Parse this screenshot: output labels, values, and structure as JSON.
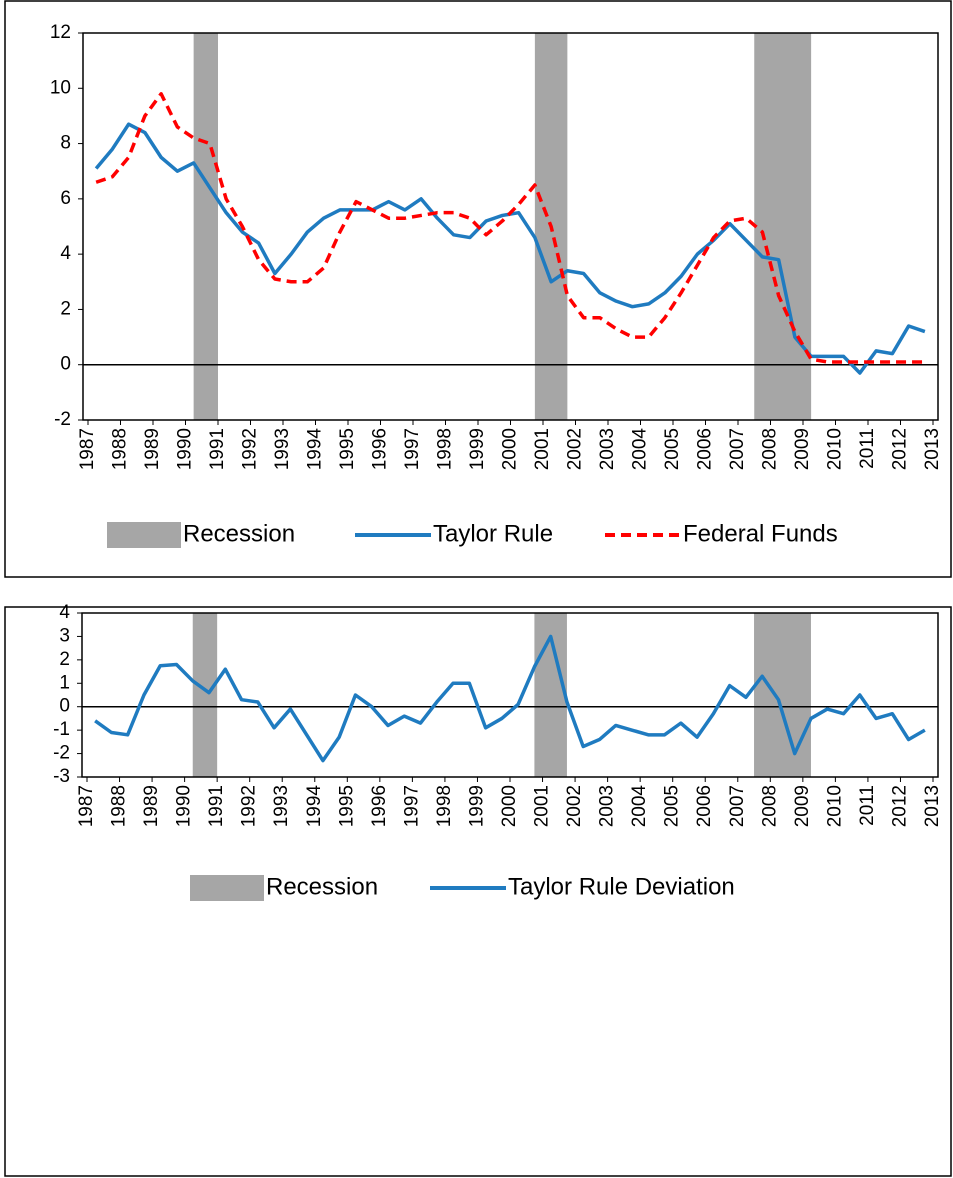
{
  "chart_data": [
    {
      "type": "line",
      "xlim": [
        1987,
        2013
      ],
      "xticks": [
        1987,
        1988,
        1989,
        1990,
        1991,
        1992,
        1993,
        1994,
        1995,
        1996,
        1997,
        1998,
        1999,
        2000,
        2001,
        2002,
        2003,
        2004,
        2005,
        2006,
        2007,
        2008,
        2009,
        2010,
        2011,
        2012,
        2013
      ],
      "ylim": [
        -2,
        12
      ],
      "yticks": [
        -2,
        0,
        2,
        4,
        6,
        8,
        10,
        12
      ],
      "recessions": {
        "name": "Recession",
        "color": "#a6a6a6",
        "periods": [
          [
            1990.25,
            1991
          ],
          [
            2000.75,
            2001.75
          ],
          [
            2007.5,
            2009.25
          ]
        ]
      },
      "x": [
        1987.25,
        1987.75,
        1988.25,
        1988.75,
        1989.25,
        1989.75,
        1990.25,
        1990.75,
        1991.25,
        1991.75,
        1992.25,
        1992.75,
        1993.25,
        1993.75,
        1994.25,
        1994.75,
        1995.25,
        1995.75,
        1996.25,
        1996.75,
        1997.25,
        1997.75,
        1998.25,
        1998.75,
        1999.25,
        1999.75,
        2000.25,
        2000.75,
        2001.25,
        2001.75,
        2002.25,
        2002.75,
        2003.25,
        2003.75,
        2004.25,
        2004.75,
        2005.25,
        2005.75,
        2006.25,
        2006.75,
        2007.25,
        2007.75,
        2008.25,
        2008.75,
        2009.25,
        2009.75,
        2010.25,
        2010.75,
        2011.25,
        2011.75,
        2012.25,
        2012.75
      ],
      "series": [
        {
          "name": "Taylor Rule",
          "color": "#1f7bc0",
          "dashed": false,
          "values": [
            7.1,
            7.8,
            8.7,
            8.4,
            7.5,
            7.0,
            7.3,
            6.4,
            5.5,
            4.8,
            4.4,
            3.3,
            4.0,
            4.8,
            5.3,
            5.6,
            5.6,
            5.6,
            5.9,
            5.6,
            6.0,
            5.3,
            4.7,
            4.6,
            5.2,
            5.4,
            5.5,
            4.6,
            3.0,
            3.4,
            3.3,
            2.6,
            2.3,
            2.1,
            2.2,
            2.6,
            3.2,
            4.0,
            4.5,
            5.1,
            4.5,
            3.9,
            3.8,
            1.0,
            0.3,
            0.3,
            0.3,
            -0.3,
            0.5,
            0.4,
            1.4,
            1.2
          ]
        },
        {
          "name": "Federal Funds",
          "color": "#ff0000",
          "dashed": true,
          "values": [
            6.6,
            6.8,
            7.5,
            9.0,
            9.8,
            8.6,
            8.2,
            8.0,
            6.0,
            5.0,
            3.8,
            3.1,
            3.0,
            3.0,
            3.5,
            4.8,
            5.9,
            5.6,
            5.3,
            5.3,
            5.4,
            5.5,
            5.5,
            5.3,
            4.7,
            5.2,
            5.8,
            6.5,
            5.0,
            2.5,
            1.7,
            1.7,
            1.3,
            1.0,
            1.0,
            1.7,
            2.6,
            3.6,
            4.6,
            5.2,
            5.3,
            4.8,
            2.5,
            1.2,
            0.2,
            0.1,
            0.1,
            0.1,
            0.1,
            0.1,
            0.1,
            0.1
          ]
        }
      ]
    },
    {
      "type": "line",
      "xlim": [
        1987,
        2013
      ],
      "xticks": [
        1987,
        1988,
        1989,
        1990,
        1991,
        1992,
        1993,
        1994,
        1995,
        1996,
        1997,
        1998,
        1999,
        2000,
        2001,
        2002,
        2003,
        2004,
        2005,
        2006,
        2007,
        2008,
        2009,
        2010,
        2011,
        2012,
        2013
      ],
      "ylim": [
        -3,
        4
      ],
      "yticks": [
        -3,
        -2,
        -1,
        0,
        1,
        2,
        3,
        4
      ],
      "recessions": {
        "name": "Recession",
        "color": "#a6a6a6",
        "periods": [
          [
            1990.25,
            1991
          ],
          [
            2000.75,
            2001.75
          ],
          [
            2007.5,
            2009.25
          ]
        ]
      },
      "x": [
        1987.25,
        1987.75,
        1988.25,
        1988.75,
        1989.25,
        1989.75,
        1990.25,
        1990.75,
        1991.25,
        1991.75,
        1992.25,
        1992.75,
        1993.25,
        1993.75,
        1994.25,
        1994.75,
        1995.25,
        1995.75,
        1996.25,
        1996.75,
        1997.25,
        1997.75,
        1998.25,
        1998.75,
        1999.25,
        1999.75,
        2000.25,
        2000.75,
        2001.25,
        2001.75,
        2002.25,
        2002.75,
        2003.25,
        2003.75,
        2004.25,
        2004.75,
        2005.25,
        2005.75,
        2006.25,
        2006.75,
        2007.25,
        2007.75,
        2008.25,
        2008.75,
        2009.25,
        2009.75,
        2010.25,
        2010.75,
        2011.25,
        2011.75,
        2012.25,
        2012.75
      ],
      "series": [
        {
          "name": "Taylor Rule Deviation",
          "color": "#1f7bc0",
          "dashed": false,
          "values": [
            -0.6,
            -1.1,
            -1.2,
            0.5,
            1.75,
            1.8,
            1.1,
            0.6,
            1.6,
            0.3,
            0.2,
            -0.9,
            -0.1,
            -1.2,
            -2.3,
            -1.3,
            0.5,
            0.0,
            -0.8,
            -0.4,
            -0.7,
            0.2,
            1.0,
            1.0,
            -0.9,
            -0.5,
            0.1,
            1.7,
            3.0,
            0.2,
            -1.7,
            -1.4,
            -0.8,
            -1.0,
            -1.2,
            -1.2,
            -0.7,
            -1.3,
            -0.3,
            0.9,
            0.4,
            1.3,
            0.3,
            -2.0,
            -0.5,
            -0.1,
            -0.3,
            0.5,
            -0.5,
            -0.3,
            -1.4,
            -1.0
          ]
        }
      ]
    }
  ]
}
